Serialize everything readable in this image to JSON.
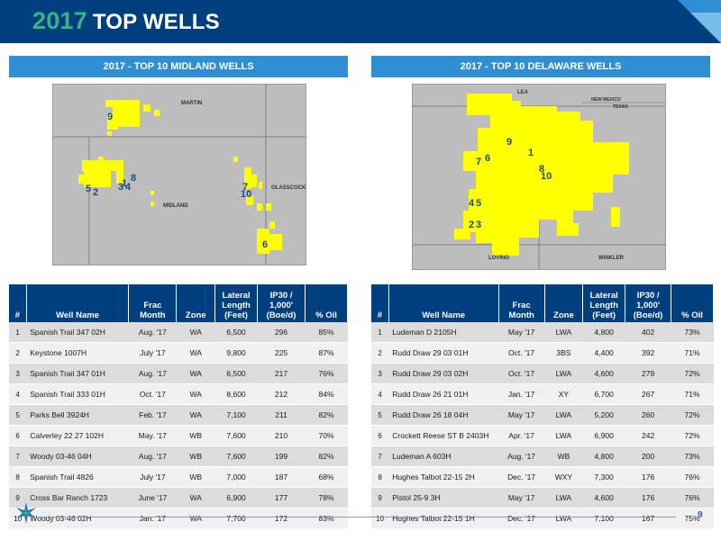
{
  "header": {
    "year": "2017",
    "title": "TOP WELLS"
  },
  "midland": {
    "section_title": "2017 - TOP 10 MIDLAND WELLS",
    "map_labels": {
      "county_top": "MARTIN",
      "county_center": "MIDLAND",
      "county_right": "GLASSCOCK"
    },
    "map_numbers": [
      "9",
      "5",
      "2",
      "1",
      "3",
      "4",
      "8",
      "7",
      "10",
      "6"
    ],
    "columns": [
      "#",
      "Well Name",
      "Frac Month",
      "Zone",
      "Lateral Length (Feet)",
      "IP30 / 1,000' (Boe/d)",
      "% Oil"
    ],
    "rows": [
      [
        "1",
        "Spanish Trail 347 02H",
        "Aug. '17",
        "WA",
        "6,500",
        "296",
        "85%"
      ],
      [
        "2",
        "Keystone 1007H",
        "July '17",
        "WA",
        "9,800",
        "225",
        "87%"
      ],
      [
        "3",
        "Spanish Trail 347 01H",
        "Aug. '17",
        "WA",
        "6,500",
        "217",
        "76%"
      ],
      [
        "4",
        "Spanish Trail 333 01H",
        "Oct. '17",
        "WA",
        "8,600",
        "212",
        "84%"
      ],
      [
        "5",
        "Parks Bell 3924H",
        "Feb. '17",
        "WA",
        "7,100",
        "211",
        "82%"
      ],
      [
        "6",
        "Calverley 22 27 102H",
        "May. '17",
        "WB",
        "7,600",
        "210",
        "70%"
      ],
      [
        "7",
        "Woody 03-46 04H",
        "Aug. '17",
        "WB",
        "7,600",
        "199",
        "82%"
      ],
      [
        "8",
        "Spanish Trail 4826",
        "July '17",
        "WB",
        "7,000",
        "187",
        "68%"
      ],
      [
        "9",
        "Cross Bar Ranch 1723",
        "June '17",
        "WA",
        "6,900",
        "177",
        "78%"
      ],
      [
        "10",
        "Woody 03-46 02H",
        "Jan. '17",
        "WA",
        "7,700",
        "172",
        "83%"
      ]
    ]
  },
  "delaware": {
    "section_title": "2017 - TOP 10 DELAWARE WELLS",
    "map_labels": {
      "county_top": "LEA",
      "state_nm": "NEW MEXICO",
      "state_tx": "TEXAS",
      "county_left": "LOVING",
      "county_right": "WINKLER"
    },
    "map_numbers": [
      "9",
      "7",
      "6",
      "1",
      "8",
      "10",
      "4",
      "5",
      "2",
      "3"
    ],
    "columns": [
      "#",
      "Well Name",
      "Frac Month",
      "Zone",
      "Lateral Length (Feet)",
      "IP30 / 1,000' (Boe/d)",
      "% Oil"
    ],
    "rows": [
      [
        "1",
        "Ludeman D 2105H",
        "May '17",
        "LWA",
        "4,800",
        "402",
        "73%"
      ],
      [
        "2",
        "Rudd Draw 29 03 01H",
        "Oct. '17",
        "3BS",
        "4,400",
        "392",
        "71%"
      ],
      [
        "3",
        "Rudd Draw 29 03 02H",
        "Oct. '17",
        "LWA",
        "4,600",
        "279",
        "72%"
      ],
      [
        "4",
        "Rudd Draw 26 21 01H",
        "Jan. '17",
        "XY",
        "6,700",
        "267",
        "71%"
      ],
      [
        "5",
        "Rudd Draw 26 18 04H",
        "May '17",
        "LWA",
        "5,200",
        "260",
        "72%"
      ],
      [
        "6",
        "Crockett Reese ST B 2403H",
        "Apr. '17",
        "LWA",
        "6,900",
        "242",
        "72%"
      ],
      [
        "7",
        "Ludeman A 603H",
        "Aug. '17",
        "WB",
        "4,800",
        "200",
        "73%"
      ],
      [
        "8",
        "Hughes Talbot 22-15 2H",
        "Dec. '17",
        "WXY",
        "7,300",
        "176",
        "76%"
      ],
      [
        "9",
        "Pistol 25-9 3H",
        "May '17",
        "LWA",
        "4,600",
        "176",
        "76%"
      ],
      [
        "10",
        "Hughes Talbot 22-15 1H",
        "Dec. '17",
        "LWA",
        "7,100",
        "167",
        "75%"
      ]
    ]
  },
  "footer": {
    "page_number": "9"
  },
  "colors": {
    "navy": "#003f7d",
    "blue": "#2f8fd2",
    "green": "#35b58a",
    "acreage": "#ffff00"
  }
}
